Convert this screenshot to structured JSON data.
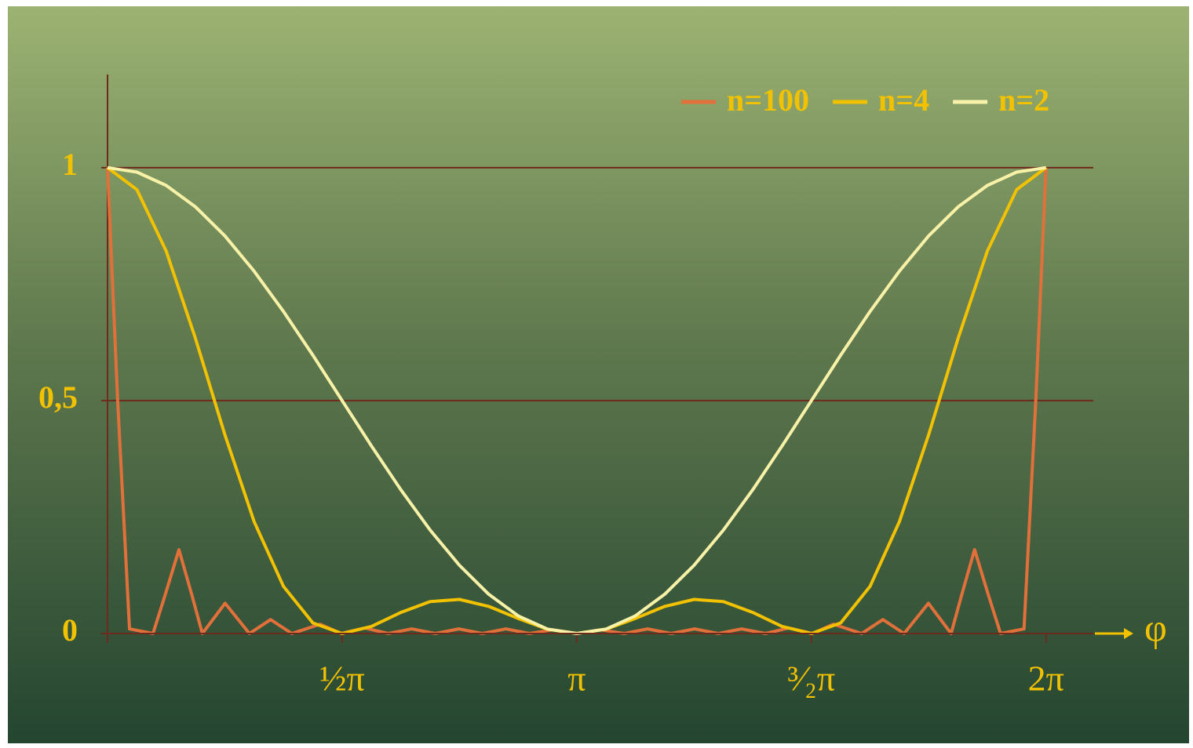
{
  "chart_data": {
    "type": "line",
    "x_label": "φ",
    "legend": "top-right",
    "grid": true,
    "xlim": [
      0,
      6.6
    ],
    "ylim": [
      0,
      1.2
    ],
    "xticks": [
      {
        "value": 1.5708,
        "label": "½π"
      },
      {
        "value": 3.1416,
        "label": "π"
      },
      {
        "value": 4.7124,
        "label": "³⁄₂π"
      },
      {
        "value": 6.2832,
        "label": "2π"
      }
    ],
    "yticks": [
      0,
      {
        "value": 0.5,
        "label": "0,5"
      },
      1
    ],
    "x": [
      0,
      0.1963,
      0.3927,
      0.589,
      0.7854,
      0.9817,
      1.1781,
      1.3744,
      1.5708,
      1.7671,
      1.9635,
      2.1598,
      2.3562,
      2.5525,
      2.7489,
      2.9452,
      3.1416,
      3.338,
      3.5343,
      3.7306,
      3.927,
      4.1233,
      4.3197,
      4.516,
      4.7124,
      4.9087,
      5.1051,
      5.3014,
      5.4978,
      5.6941,
      5.8905,
      6.0868,
      6.2832
    ],
    "series": [
      {
        "name": "n=100",
        "color": "#e2703a",
        "x": [
          0,
          0.068,
          0.147,
          0.304,
          0.383,
          0.478,
          0.567,
          0.635,
          0.787,
          0.95,
          1.092,
          1.234,
          1.423,
          1.564,
          1.722,
          1.879,
          2.037,
          2.194,
          2.352,
          2.509,
          2.667,
          2.824,
          2.982,
          3.1416,
          3.302,
          3.459,
          3.616,
          3.774,
          3.931,
          4.089,
          4.246,
          4.404,
          4.561,
          4.719,
          4.86,
          5.049,
          5.191,
          5.333,
          5.496,
          5.648,
          5.716,
          5.805,
          5.9,
          5.979,
          6.136,
          6.215,
          6.2832
        ],
        "values": [
          1,
          0.5,
          0.01,
          0,
          0.08,
          0.18,
          0.08,
          0,
          0.065,
          0,
          0.03,
          0,
          0.02,
          0,
          0.012,
          0,
          0.01,
          0,
          0.01,
          0,
          0.01,
          0,
          0.008,
          0,
          0.008,
          0,
          0.01,
          0,
          0.01,
          0,
          0.01,
          0,
          0.012,
          0,
          0.02,
          0,
          0.03,
          0,
          0.065,
          0,
          0.08,
          0.18,
          0.08,
          0,
          0.01,
          0.5,
          1
        ]
      },
      {
        "name": "n=4",
        "color": "#f2c200",
        "values": [
          1,
          0.9527,
          0.8211,
          0.633,
          0.4268,
          0.2401,
          0.1012,
          0.0228,
          0,
          0.0153,
          0.0452,
          0.0686,
          0.0732,
          0.0583,
          0.0325,
          0.0092,
          0,
          0.0092,
          0.0325,
          0.0583,
          0.0732,
          0.0686,
          0.0452,
          0.0153,
          0,
          0.0228,
          0.1012,
          0.2401,
          0.4268,
          0.633,
          0.8211,
          0.9527,
          1
        ]
      },
      {
        "name": "n=2",
        "color": "#f8f2a8",
        "values": [
          1,
          0.9904,
          0.9619,
          0.9157,
          0.8536,
          0.7778,
          0.6913,
          0.5975,
          0.5,
          0.4025,
          0.3087,
          0.2222,
          0.1464,
          0.0843,
          0.0381,
          0.0096,
          0,
          0.0096,
          0.0381,
          0.0843,
          0.1464,
          0.2222,
          0.3087,
          0.4025,
          0.5,
          0.5975,
          0.6913,
          0.7778,
          0.8536,
          0.9157,
          0.9619,
          0.9904,
          1
        ]
      }
    ]
  }
}
